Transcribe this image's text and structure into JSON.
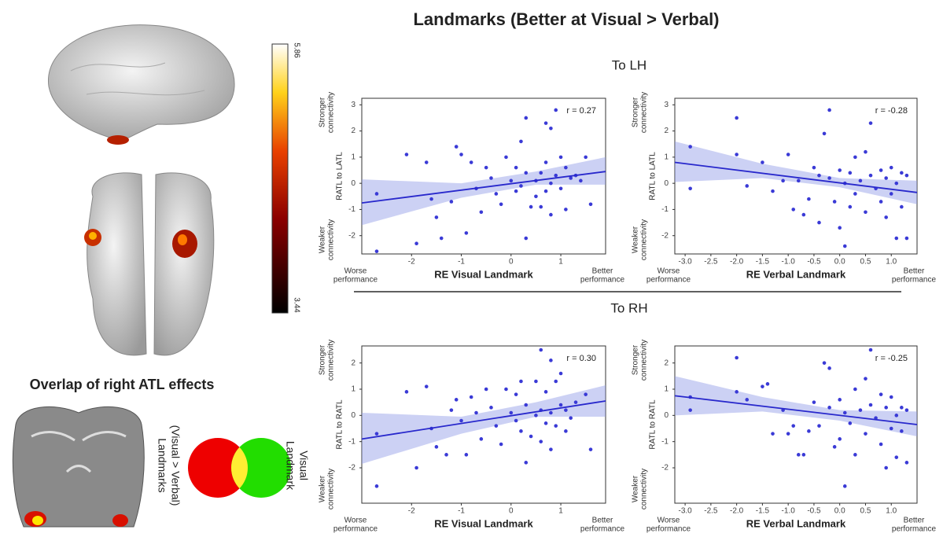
{
  "title": "Landmarks (Better at Visual > Verbal)",
  "sections": [
    "To LH",
    "To RH"
  ],
  "colorbar": {
    "range": [
      3.44,
      5.86
    ]
  },
  "overlap": {
    "title": "Overlap of right ATL effects",
    "left_label": [
      "Landmarks",
      "(Visual > Verbal)"
    ],
    "right_label": [
      "Visual",
      "Landmark"
    ]
  },
  "chart_data": [
    {
      "type": "scatter",
      "annotation": "r = 0.27",
      "y_label": "RATL to LATL",
      "x_label": "RE Visual Landmark",
      "y_high_label": [
        "Stronger",
        "connectivity"
      ],
      "y_low_label": [
        "Weaker",
        "connectivity"
      ],
      "x_low_label": [
        "Worse",
        "performance"
      ],
      "x_high_label": [
        "Better",
        "performance"
      ],
      "color": "#3a3ad6",
      "xlim": [
        -3.0,
        1.9
      ],
      "ylim": [
        -2.7,
        3.25
      ],
      "xticks": [
        -2,
        -1,
        0,
        1
      ],
      "yticks": [
        -2,
        -1,
        0,
        1,
        2,
        3
      ],
      "x": [
        -2.7,
        -2.7,
        -2.1,
        -1.9,
        -1.7,
        -1.6,
        -1.5,
        -1.4,
        -1.2,
        -1.1,
        -1.0,
        -0.9,
        -0.8,
        -0.7,
        -0.6,
        -0.5,
        -0.4,
        -0.3,
        -0.2,
        -0.1,
        0.0,
        0.1,
        0.1,
        0.2,
        0.2,
        0.3,
        0.3,
        0.3,
        0.4,
        0.5,
        0.5,
        0.6,
        0.6,
        0.7,
        0.7,
        0.7,
        0.8,
        0.8,
        0.8,
        0.9,
        0.9,
        1.0,
        1.0,
        1.1,
        1.1,
        1.2,
        1.3,
        1.4,
        1.5,
        1.6
      ],
      "y": [
        -2.6,
        -0.4,
        1.1,
        -2.3,
        0.8,
        -0.6,
        -1.3,
        -2.1,
        -0.7,
        1.4,
        1.1,
        -1.9,
        0.8,
        -0.2,
        -1.1,
        0.6,
        0.2,
        -0.4,
        -0.8,
        1.0,
        0.1,
        0.6,
        -0.3,
        1.6,
        -0.1,
        2.5,
        0.4,
        -2.1,
        -0.9,
        0.1,
        -0.5,
        0.4,
        -0.9,
        2.3,
        0.8,
        -0.3,
        2.1,
        0.0,
        -1.2,
        2.8,
        0.3,
        1.0,
        -0.2,
        0.6,
        -1.0,
        0.2,
        0.3,
        0.1,
        1.0,
        -0.8
      ],
      "fit": {
        "x": [
          -3.0,
          1.9
        ],
        "y": [
          -0.75,
          0.45
        ]
      },
      "band": {
        "x": [
          -3.0,
          -1.0,
          0.5,
          1.9
        ],
        "upper": [
          0.15,
          0.0,
          0.45,
          1.0
        ],
        "lower": [
          -1.6,
          -0.55,
          -0.05,
          -0.05
        ]
      }
    },
    {
      "type": "scatter",
      "annotation": "r = -0.28",
      "y_label": "RATL to LATL",
      "x_label": "RE Verbal Landmark",
      "y_high_label": [
        "Stronger",
        "connectivity"
      ],
      "y_low_label": [
        "Weaker",
        "connectivity"
      ],
      "x_low_label": [
        "Worse",
        "performance"
      ],
      "x_high_label": [
        "Better",
        "performance"
      ],
      "color": "#3a3ad6",
      "xlim": [
        -3.2,
        1.5
      ],
      "ylim": [
        -2.7,
        3.25
      ],
      "xticks": [
        {
          "value": -3,
          "label": "-3.0"
        },
        -2.5,
        {
          "value": -2,
          "label": "-2.0"
        },
        -1.5,
        {
          "value": -1,
          "label": "-1.0"
        },
        -0.5,
        {
          "value": 0,
          "label": "0.0"
        },
        0.5,
        {
          "value": 1,
          "label": "1.0"
        }
      ],
      "yticks": [
        -2,
        -1,
        0,
        1,
        2,
        3
      ],
      "x": [
        -2.9,
        -2.9,
        -2.0,
        -2.0,
        -1.8,
        -1.5,
        -1.3,
        -1.1,
        -1.0,
        -0.9,
        -0.8,
        -0.7,
        -0.6,
        -0.5,
        -0.4,
        -0.4,
        -0.3,
        -0.2,
        -0.2,
        -0.1,
        0.0,
        0.0,
        0.1,
        0.1,
        0.2,
        0.2,
        0.3,
        0.3,
        0.4,
        0.5,
        0.5,
        0.6,
        0.6,
        0.7,
        0.8,
        0.8,
        0.9,
        0.9,
        1.0,
        1.0,
        1.1,
        1.1,
        1.2,
        1.2,
        1.3,
        1.3
      ],
      "y": [
        1.4,
        -0.2,
        2.5,
        1.1,
        -0.1,
        0.8,
        -0.3,
        0.1,
        1.1,
        -1.0,
        0.1,
        -1.2,
        -0.6,
        0.6,
        -1.5,
        0.3,
        1.9,
        2.8,
        0.2,
        -0.7,
        0.5,
        -1.7,
        -2.4,
        0.0,
        -0.9,
        0.4,
        1.0,
        -0.4,
        0.1,
        -1.1,
        1.2,
        2.3,
        0.3,
        -0.2,
        0.5,
        -0.7,
        -1.3,
        0.2,
        -0.4,
        0.6,
        -2.1,
        0.0,
        -0.9,
        0.4,
        -2.1,
        0.3
      ],
      "fit": {
        "x": [
          -3.2,
          1.5
        ],
        "y": [
          0.8,
          -0.35
        ]
      },
      "band": {
        "x": [
          -3.2,
          -1.5,
          0.0,
          1.5
        ],
        "upper": [
          1.6,
          0.75,
          0.2,
          0.1
        ],
        "lower": [
          0.05,
          0.2,
          -0.15,
          -0.8
        ]
      }
    },
    {
      "type": "scatter",
      "annotation": "r = 0.30",
      "y_label": "RATL to RATL",
      "x_label": "RE Visual Landmark",
      "y_high_label": [
        "Stronger",
        "connectivity"
      ],
      "y_low_label": [
        "Weaker",
        "connectivity"
      ],
      "x_low_label": [
        "Worse",
        "performance"
      ],
      "x_high_label": [
        "Better",
        "performance"
      ],
      "color": "#3a3ad6",
      "xlim": [
        -3.0,
        1.9
      ],
      "ylim": [
        -3.35,
        2.65
      ],
      "xticks": [
        -2,
        -1,
        0,
        1
      ],
      "yticks": [
        -2,
        -1,
        0,
        1,
        2
      ],
      "x": [
        -2.7,
        -2.7,
        -2.1,
        -1.9,
        -1.7,
        -1.6,
        -1.5,
        -1.3,
        -1.2,
        -1.1,
        -1.0,
        -0.9,
        -0.8,
        -0.7,
        -0.6,
        -0.5,
        -0.4,
        -0.3,
        -0.2,
        -0.1,
        0.0,
        0.1,
        0.1,
        0.2,
        0.2,
        0.3,
        0.3,
        0.4,
        0.5,
        0.5,
        0.6,
        0.6,
        0.6,
        0.7,
        0.7,
        0.8,
        0.8,
        0.8,
        0.9,
        0.9,
        1.0,
        1.0,
        1.1,
        1.1,
        1.2,
        1.3,
        1.5,
        1.6
      ],
      "y": [
        -2.7,
        -0.7,
        0.9,
        -2.0,
        1.1,
        -0.5,
        -1.2,
        -1.5,
        0.2,
        0.6,
        -0.2,
        -1.5,
        0.7,
        0.1,
        -0.9,
        1.0,
        0.3,
        -0.4,
        -1.1,
        1.0,
        0.1,
        0.8,
        -0.2,
        1.3,
        -0.6,
        0.4,
        -1.8,
        -0.8,
        0.0,
        1.3,
        2.5,
        0.2,
        -1.0,
        0.9,
        -0.3,
        2.1,
        0.1,
        -1.3,
        1.3,
        -0.4,
        1.6,
        0.4,
        0.2,
        -0.6,
        -0.1,
        0.5,
        0.8,
        -1.3
      ],
      "fit": {
        "x": [
          -3.0,
          1.9
        ],
        "y": [
          -0.9,
          0.55
        ]
      },
      "band": {
        "x": [
          -3.0,
          -1.0,
          0.5,
          1.9
        ],
        "upper": [
          0.1,
          -0.05,
          0.5,
          1.15
        ],
        "lower": [
          -1.85,
          -0.7,
          -0.05,
          -0.05
        ]
      }
    },
    {
      "type": "scatter",
      "annotation": "r = -0.25",
      "y_label": "RATL to RATL",
      "x_label": "RE Verbal Landmark",
      "y_high_label": [
        "Stronger",
        "connectivity"
      ],
      "y_low_label": [
        "Weaker",
        "connectivity"
      ],
      "x_low_label": [
        "Worse",
        "performance"
      ],
      "x_high_label": [
        "Better",
        "performance"
      ],
      "color": "#3a3ad6",
      "xlim": [
        -3.2,
        1.5
      ],
      "ylim": [
        -3.35,
        2.65
      ],
      "xticks": [
        {
          "value": -3,
          "label": "-3.0"
        },
        -2.5,
        {
          "value": -2,
          "label": "-2.0"
        },
        -1.5,
        {
          "value": -1,
          "label": "-1.0"
        },
        -0.5,
        {
          "value": 0,
          "label": "0.0"
        },
        0.5,
        {
          "value": 1,
          "label": "1.0"
        }
      ],
      "yticks": [
        -2,
        -1,
        0,
        1,
        2
      ],
      "x": [
        -2.9,
        -2.9,
        -2.0,
        -2.0,
        -1.8,
        -1.5,
        -1.4,
        -1.3,
        -1.1,
        -1.0,
        -0.9,
        -0.8,
        -0.7,
        -0.6,
        -0.5,
        -0.4,
        -0.3,
        -0.2,
        -0.2,
        -0.1,
        0.0,
        0.0,
        0.1,
        0.1,
        0.2,
        0.3,
        0.3,
        0.4,
        0.5,
        0.5,
        0.6,
        0.6,
        0.7,
        0.8,
        0.8,
        0.9,
        0.9,
        1.0,
        1.0,
        1.1,
        1.1,
        1.2,
        1.2,
        1.3,
        1.3
      ],
      "y": [
        0.7,
        0.2,
        2.2,
        0.9,
        0.6,
        1.1,
        1.2,
        -0.7,
        0.2,
        -0.7,
        -0.4,
        -1.5,
        -1.5,
        -0.6,
        0.5,
        -0.4,
        2.0,
        1.8,
        0.3,
        -1.2,
        0.6,
        -0.9,
        -2.7,
        0.1,
        -0.3,
        1.0,
        -1.5,
        0.2,
        -0.7,
        1.4,
        2.5,
        0.4,
        -0.1,
        0.8,
        -1.1,
        -2.0,
        0.3,
        -0.5,
        0.7,
        -1.6,
        0.0,
        -0.6,
        0.3,
        -1.8,
        0.2
      ],
      "fit": {
        "x": [
          -3.2,
          1.5
        ],
        "y": [
          0.75,
          -0.35
        ]
      },
      "band": {
        "x": [
          -3.2,
          -1.5,
          0.0,
          1.5
        ],
        "upper": [
          1.5,
          0.7,
          0.2,
          0.15
        ],
        "lower": [
          0.0,
          0.15,
          -0.2,
          -0.8
        ]
      }
    }
  ]
}
